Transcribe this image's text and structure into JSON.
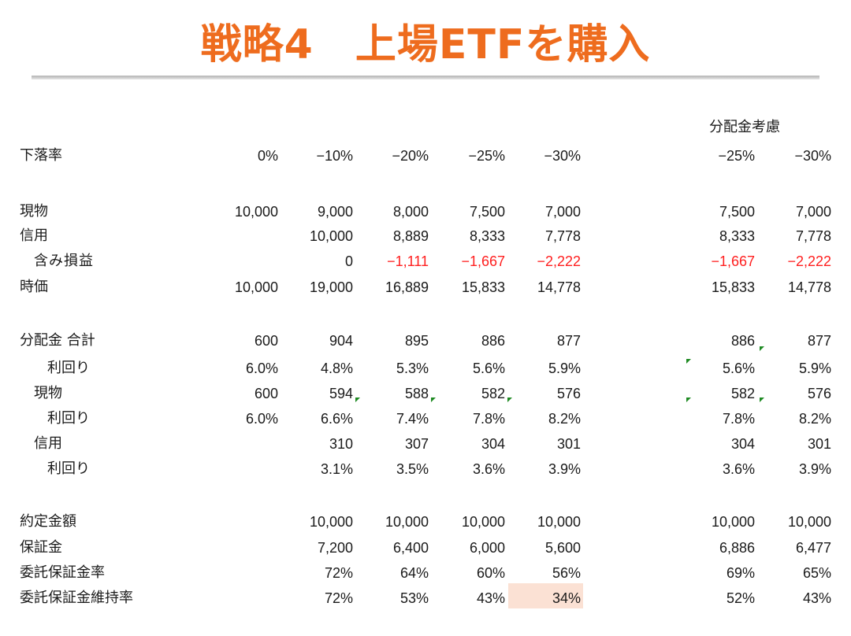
{
  "title": "戦略4　上場ETFを購入",
  "side_header": "分配金考慮",
  "table": {
    "header": {
      "label": "下落率",
      "main": [
        "0%",
        "−10%",
        "−20%",
        "−25%",
        "−30%"
      ],
      "side": [
        "−25%",
        "−30%"
      ]
    },
    "rows": [
      {
        "label": "現物",
        "main": [
          "10,000",
          "9,000",
          "8,000",
          "7,500",
          "7,000"
        ],
        "side": [
          "7,500",
          "7,000"
        ]
      },
      {
        "label": "信用",
        "main": [
          "",
          "10,000",
          "8,889",
          "8,333",
          "7,778"
        ],
        "side": [
          "8,333",
          "7,778"
        ]
      },
      {
        "label": "含み損益",
        "main": [
          "",
          "0",
          "−1,111",
          "−1,667",
          "−2,222"
        ],
        "side": [
          "−1,667",
          "−2,222"
        ]
      },
      {
        "label": "時価",
        "main": [
          "10,000",
          "19,000",
          "16,889",
          "15,833",
          "14,778"
        ],
        "side": [
          "15,833",
          "14,778"
        ]
      },
      {
        "label": "分配金 合計",
        "main": [
          "600",
          "904",
          "895",
          "886",
          "877"
        ],
        "side": [
          "886",
          "877"
        ]
      },
      {
        "label": "利回り",
        "main": [
          "6.0%",
          "4.8%",
          "5.3%",
          "5.6%",
          "5.9%"
        ],
        "side": [
          "5.6%",
          "5.9%"
        ]
      },
      {
        "label": "現物",
        "main": [
          "600",
          "594",
          "588",
          "582",
          "576"
        ],
        "side": [
          "582",
          "576"
        ]
      },
      {
        "label": "利回り",
        "main": [
          "6.0%",
          "6.6%",
          "7.4%",
          "7.8%",
          "8.2%"
        ],
        "side": [
          "7.8%",
          "8.2%"
        ]
      },
      {
        "label": "信用",
        "main": [
          "",
          "310",
          "307",
          "304",
          "301"
        ],
        "side": [
          "304",
          "301"
        ]
      },
      {
        "label": "利回り",
        "main": [
          "",
          "3.1%",
          "3.5%",
          "3.6%",
          "3.9%"
        ],
        "side": [
          "3.6%",
          "3.9%"
        ]
      },
      {
        "label": "約定金額",
        "main": [
          "",
          "10,000",
          "10,000",
          "10,000",
          "10,000"
        ],
        "side": [
          "10,000",
          "10,000"
        ]
      },
      {
        "label": "保証金",
        "main": [
          "",
          "7,200",
          "6,400",
          "6,000",
          "5,600"
        ],
        "side": [
          "6,886",
          "6,477"
        ]
      },
      {
        "label": "委託保証金率",
        "main": [
          "",
          "72%",
          "64%",
          "60%",
          "56%"
        ],
        "side": [
          "69%",
          "65%"
        ]
      },
      {
        "label": "委託保証金維持率",
        "main": [
          "",
          "72%",
          "53%",
          "43%",
          "34%"
        ],
        "side": [
          "52%",
          "43%"
        ]
      }
    ]
  },
  "colors": {
    "title": "#ee6c1e",
    "negative_values": "#ff2020",
    "highlight_cell": "#fbe1d4",
    "comment_marker": "#1e8a22"
  }
}
